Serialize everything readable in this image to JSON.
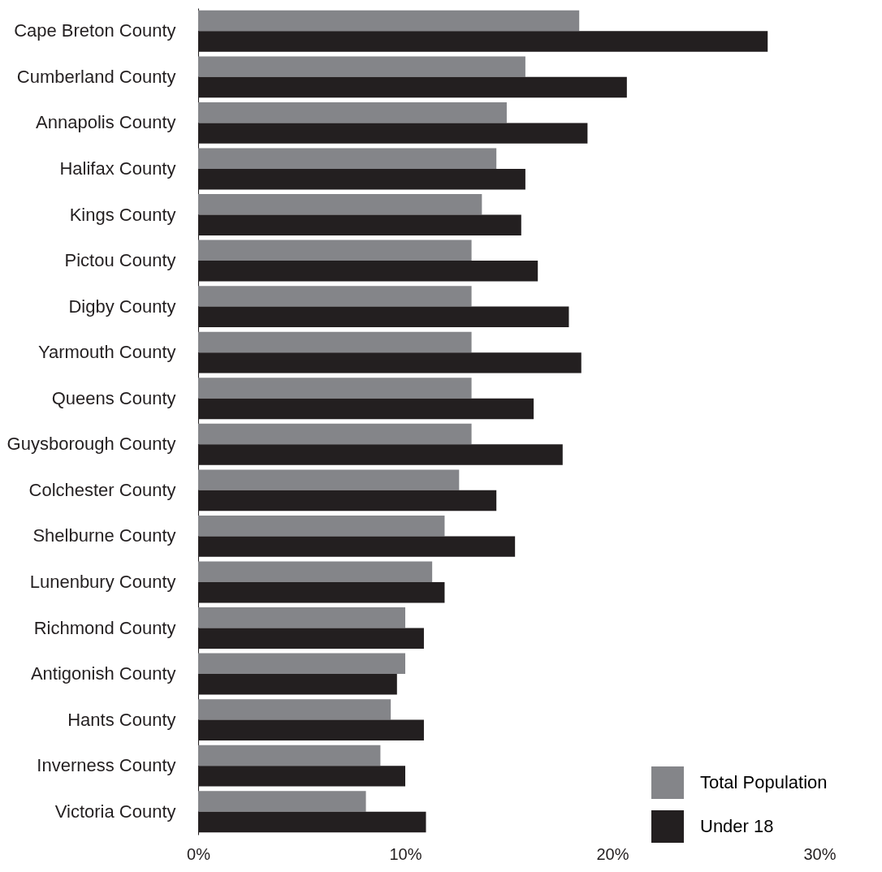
{
  "chart_data": {
    "type": "bar",
    "orientation": "horizontal",
    "categories": [
      "Cape Breton County",
      "Cumberland County",
      "Annapolis County",
      "Halifax County",
      "Kings County",
      "Pictou County",
      "Digby County",
      "Yarmouth County",
      "Queens County",
      "Guysborough County",
      "Colchester County",
      "Shelburne County",
      "Lunenbury County",
      "Richmond County",
      "Antigonish County",
      "Hants County",
      "Inverness County",
      "Victoria County"
    ],
    "series": [
      {
        "name": "Total Population",
        "color": "#848589",
        "values": [
          18.4,
          15.8,
          14.9,
          14.4,
          13.7,
          13.2,
          13.2,
          13.2,
          13.2,
          13.2,
          12.6,
          11.9,
          11.3,
          10.0,
          10.0,
          9.3,
          8.8,
          8.1
        ]
      },
      {
        "name": "Under 18",
        "color": "#231f20",
        "values": [
          27.5,
          20.7,
          18.8,
          15.8,
          15.6,
          16.4,
          17.9,
          18.5,
          16.2,
          17.6,
          14.4,
          15.3,
          11.9,
          10.9,
          9.6,
          10.9,
          10.0,
          11.0
        ]
      }
    ],
    "xlim": [
      0,
      30
    ],
    "xticks": [
      {
        "value": 0,
        "label": "0%"
      },
      {
        "value": 10,
        "label": "10%"
      },
      {
        "value": 20,
        "label": "20%"
      },
      {
        "value": 30,
        "label": "30%"
      }
    ],
    "grid": false,
    "legend": "bottom right"
  }
}
